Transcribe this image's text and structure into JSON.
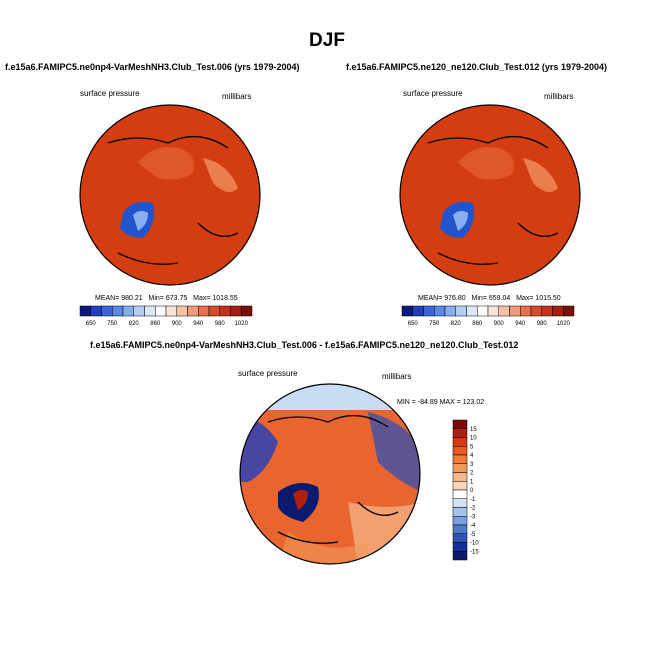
{
  "main_title": "DJF",
  "colors": {
    "red_field": "#d43d0f",
    "dark_red": "#8c1c0a",
    "blue_patch": "#2255cc",
    "coast": "#000000"
  },
  "chart_data": [
    {
      "type": "heatmap",
      "id": "model-a",
      "title": "f.e15a6.FAMIPC5.ne0np4-VarMeshNH3.Club_Test.006 (yrs 1979-2004)",
      "variable_label": "surface pressure",
      "units_label": "millibars",
      "stats": {
        "mean": "980.21",
        "min": "673.75",
        "max": "1018.55"
      },
      "stats_labels": {
        "mean": "MEAN=",
        "min": "Min=",
        "max": "Max="
      },
      "colorbar": {
        "orientation": "horizontal",
        "colors": [
          "#0a1a7a",
          "#1f3fbf",
          "#3a66d9",
          "#5a8ae8",
          "#86aef0",
          "#b4cdf5",
          "#dce8fa",
          "#ffffff",
          "#fde3d6",
          "#f9c2a8",
          "#f29a78",
          "#e86e4c",
          "#d94a2a",
          "#c4301a",
          "#a51d10",
          "#7a0e08"
        ],
        "tick_labels": [
          "650",
          "750",
          "820",
          "860",
          "900",
          "940",
          "980",
          "1020"
        ]
      }
    },
    {
      "type": "heatmap",
      "id": "model-b",
      "title": "f.e15a6.FAMIPC5.ne120_ne120.Club_Test.012 (yrs 1979-2004)",
      "variable_label": "surface pressure",
      "units_label": "millibars",
      "stats": {
        "mean": "976.80",
        "min": "659.04",
        "max": "1015.50"
      },
      "stats_labels": {
        "mean": "MEAN=",
        "min": "Min=",
        "max": "Max="
      },
      "colorbar": {
        "orientation": "horizontal",
        "colors": [
          "#0a1a7a",
          "#1f3fbf",
          "#3a66d9",
          "#5a8ae8",
          "#86aef0",
          "#b4cdf5",
          "#dce8fa",
          "#ffffff",
          "#fde3d6",
          "#f9c2a8",
          "#f29a78",
          "#e86e4c",
          "#d94a2a",
          "#c4301a",
          "#a51d10",
          "#7a0e08"
        ],
        "tick_labels": [
          "650",
          "750",
          "820",
          "860",
          "900",
          "940",
          "980",
          "1020"
        ]
      }
    },
    {
      "type": "heatmap",
      "id": "difference",
      "title": "f.e15a6.FAMIPC5.ne0np4-VarMeshNH3.Club_Test.006 - f.e15a6.FAMIPC5.ne120_ne120.Club_Test.012",
      "variable_label": "surface pressure",
      "units_label": "millibars",
      "range_text": "MIN = -84.89 MAX = 123.02",
      "colorbar": {
        "orientation": "vertical",
        "colors": [
          "#7a0a0a",
          "#b0200f",
          "#d63a14",
          "#e65a25",
          "#ee7a3c",
          "#f39a5a",
          "#f7b98a",
          "#fad6bd",
          "#ffffff",
          "#d2e2f5",
          "#a6c3ea",
          "#7aa0de",
          "#5078cc",
          "#2f52b5",
          "#172f96",
          "#0a1a6e"
        ],
        "tick_labels": [
          "15",
          "10",
          "5",
          "4",
          "3",
          "2",
          "1",
          "0",
          "-1",
          "-2",
          "-3",
          "-4",
          "-5",
          "-10",
          "-15"
        ]
      }
    }
  ]
}
